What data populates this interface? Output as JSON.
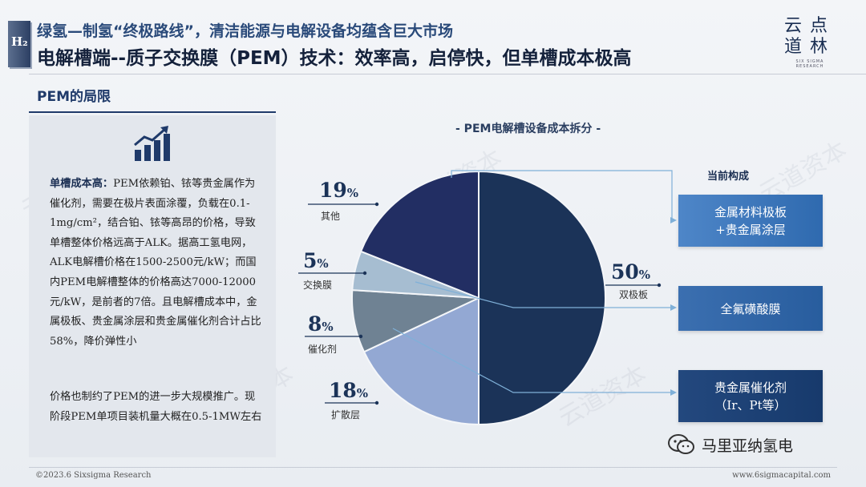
{
  "header": {
    "logo_letter": "H₂",
    "title_line1": "绿氢—制氢“终极路线”，清洁能源与电解设备均蕴含巨大市场",
    "title_line2": "电解槽端--质子交换膜（PEM）技术：效率高，启停快，但单槽成本极高",
    "brand_name": "云点道林",
    "brand_sub": "SIX SIGMA RESEARCH"
  },
  "left_panel": {
    "section_title": "PEM的局限",
    "icon": "chart-growth-icon",
    "para1_label": "单槽成本高：",
    "para1_text": "PEM依赖铂、铱等贵金属作为催化剂，需要在极片表面涂覆，负载在0.1-1mg/cm²，结合铂、铱等高昂的价格，导致单槽整体价格远高于ALK。据高工氢电网，ALK电解槽价格在1500-2500元/kW；而国内PEM电解槽整体的价格高达7000-12000元/kW，是前者的7倍。且电解槽成本中，金属极板、贵金属涂层和贵金属催化剂合计占比58%，降价弹性小",
    "para2_text": "价格也制约了PEM的进一步大规模推广。现阶段PEM单项目装机量大概在0.5-1MW左右"
  },
  "chart_data": {
    "type": "pie",
    "title": "- PEM电解槽设备成本拆分 -",
    "slices": [
      {
        "name": "双极板",
        "value": 50,
        "color": "#1b3358"
      },
      {
        "name": "扩散层",
        "value": 18,
        "color": "#93a8d3"
      },
      {
        "name": "催化剂",
        "value": 8,
        "color": "#6f8293"
      },
      {
        "name": "交换膜",
        "value": 5,
        "color": "#a6bdd1"
      },
      {
        "name": "其他",
        "value": 19,
        "color": "#222e63"
      }
    ],
    "legend_title": "当前构成",
    "composition": [
      "金属材料极板\n+贵金属涂层",
      "全氟磺酸膜",
      "贵金属催化剂\n（Ir、Pt等）"
    ]
  },
  "footer": {
    "copyright": "©2023.6 Sixsigma Research",
    "url": "www.6sigmacapital.com",
    "wechat_name": "马里亚纳氢电"
  }
}
